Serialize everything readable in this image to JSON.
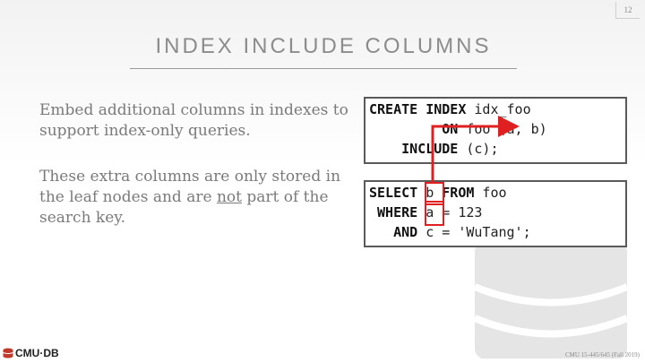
{
  "slide": {
    "page_number": "12",
    "title": "INDEX INCLUDE COLUMNS",
    "paragraph1": "Embed additional columns in indexes to support index-only queries.",
    "paragraph2": {
      "before": "These extra columns are only stored in the leaf nodes and are ",
      "underlined": "not",
      "after": " part of the search key."
    }
  },
  "code1": {
    "l1_kw": "CREATE INDEX",
    "l1_rest": " idx_foo",
    "l2_indent": "         ",
    "l2_kw": "ON",
    "l2_rest": " foo (a, b)",
    "l3_indent": "    ",
    "l3_kw": "INCLUDE",
    "l3_rest": " (c);"
  },
  "code2": {
    "l1_kw1": "SELECT",
    "l1_mid": " b ",
    "l1_kw2": "FROM",
    "l1_rest": " foo",
    "l2_indent": " ",
    "l2_kw": "WHERE",
    "l2_rest": " a = 123",
    "l3_indent": "   ",
    "l3_kw": "AND",
    "l3_rest": " c = 'WuTang';"
  },
  "footer": {
    "logo_text": "CMU·DB",
    "course": "CMU 15-445/645 (Fall 2019)"
  },
  "colors": {
    "highlight": "#e02020",
    "title": "#8c8c8c",
    "body": "#7a7a7a"
  },
  "icons": {
    "logo": "database-cylinder-icon",
    "footer_mark": "cmu-db-logo-icon"
  }
}
